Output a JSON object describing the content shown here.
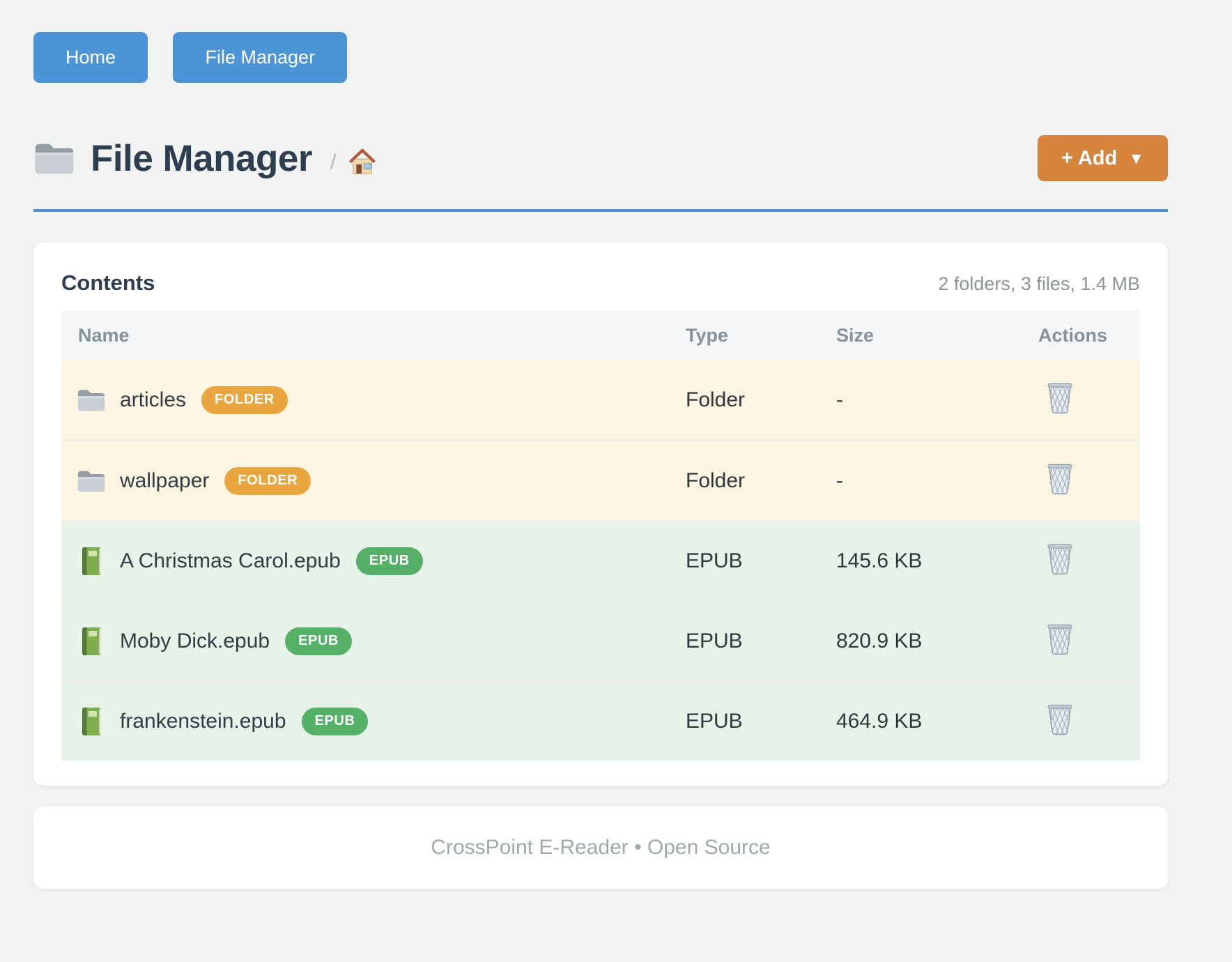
{
  "nav": {
    "items": [
      {
        "label": "Home"
      },
      {
        "label": "File Manager"
      }
    ]
  },
  "header": {
    "title": "File Manager",
    "title_icon": "folder-icon",
    "breadcrumb": {
      "separator": "/",
      "home_icon": "house-icon"
    },
    "add_button": {
      "label": "+ Add",
      "caret": "▼"
    }
  },
  "contents": {
    "heading": "Contents",
    "summary": "2 folders, 3 files, 1.4 MB",
    "columns": [
      "Name",
      "Type",
      "Size",
      "Actions"
    ],
    "rows": [
      {
        "icon": "folder-icon",
        "name": "articles",
        "badge": "FOLDER",
        "kind": "folder",
        "type": "Folder",
        "size": "-"
      },
      {
        "icon": "folder-icon",
        "name": "wallpaper",
        "badge": "FOLDER",
        "kind": "folder",
        "type": "Folder",
        "size": "-"
      },
      {
        "icon": "green-book-icon",
        "name": "A Christmas Carol.epub",
        "badge": "EPUB",
        "kind": "epub",
        "type": "EPUB",
        "size": "145.6 KB"
      },
      {
        "icon": "green-book-icon",
        "name": "Moby Dick.epub",
        "badge": "EPUB",
        "kind": "epub",
        "type": "EPUB",
        "size": "820.9 KB"
      },
      {
        "icon": "green-book-icon",
        "name": "frankenstein.epub",
        "badge": "EPUB",
        "kind": "epub",
        "type": "EPUB",
        "size": "464.9 KB"
      }
    ],
    "action_icon": "wastebasket-icon"
  },
  "footer": {
    "text": "CrossPoint E-Reader • Open Source"
  },
  "colors": {
    "accent_blue": "#4d94d6",
    "accent_orange": "#d6833c",
    "badge_folder": "#e9a63e",
    "badge_epub": "#55b168",
    "row_folder_bg": "#fcf5e1",
    "row_epub_bg": "#e7f2e9",
    "title_text": "#2d3e50",
    "muted_text": "#8b9596"
  }
}
